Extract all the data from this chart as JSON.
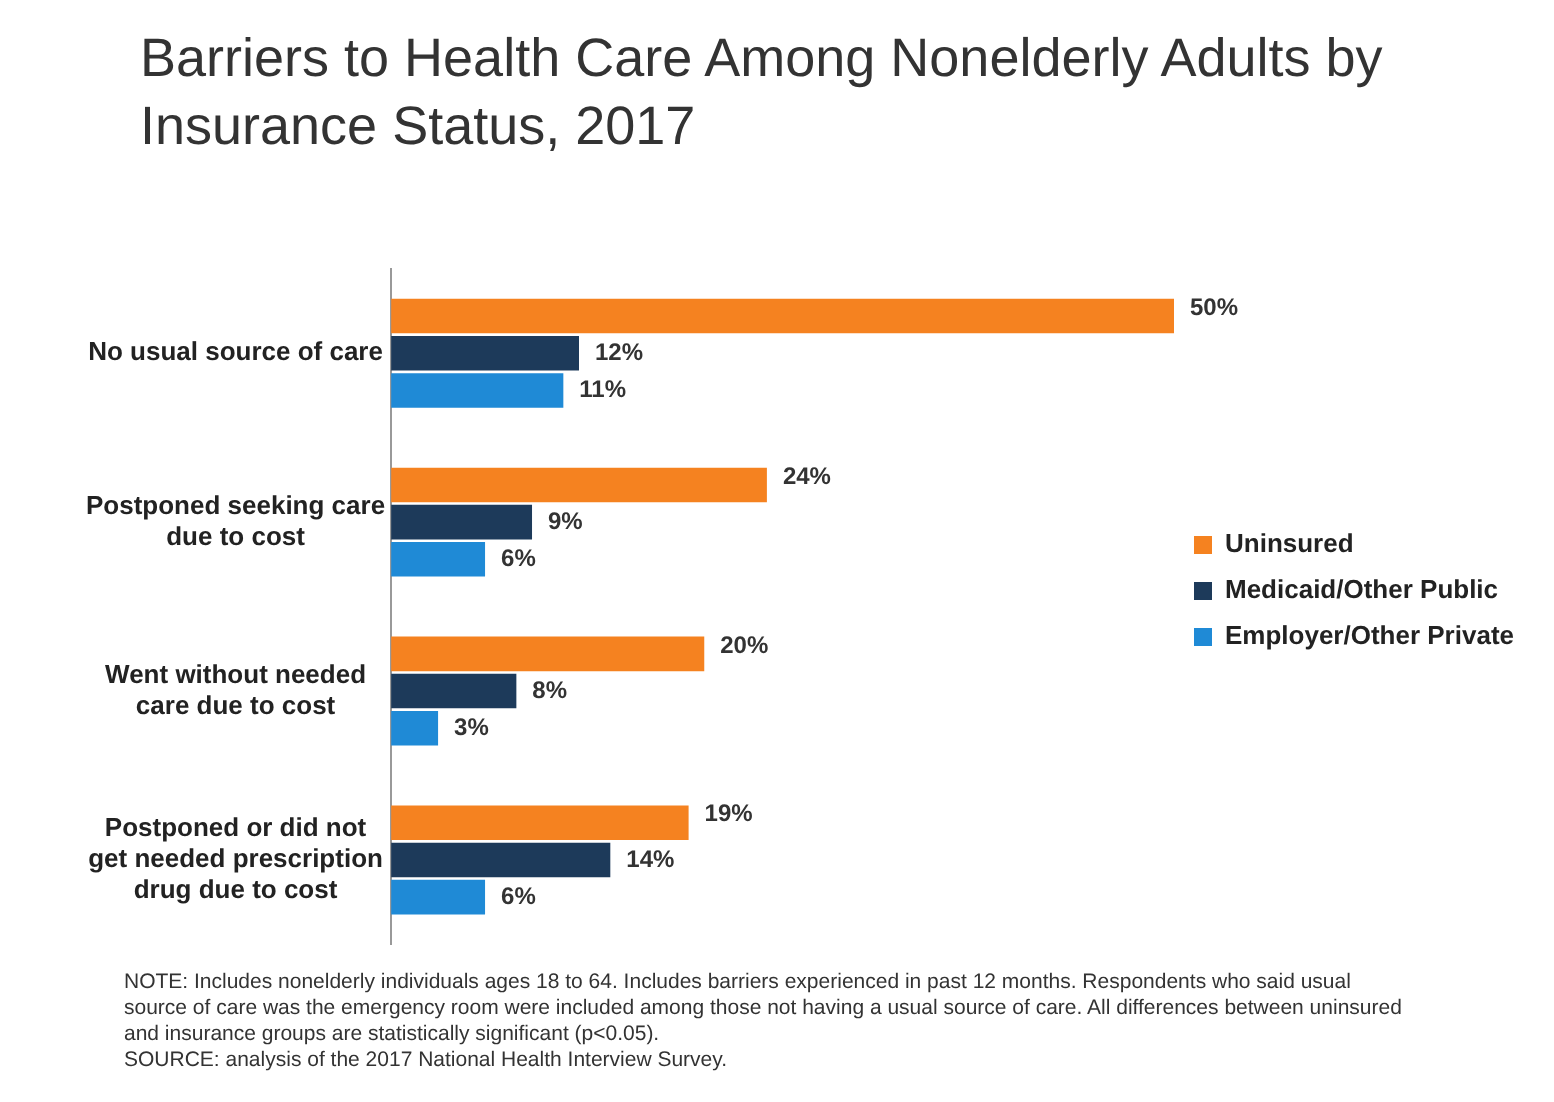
{
  "chart_data": {
    "type": "bar",
    "orientation": "horizontal",
    "title": "Barriers to Health Care Among Nonelderly Adults by Insurance Status, 2017",
    "categories": [
      "No usual source of care",
      "Postponed seeking care due to cost",
      "Went without needed care due to cost",
      "Postponed or did not get needed prescription drug due to cost"
    ],
    "series": [
      {
        "name": "Uninsured",
        "color": "#f58220",
        "values": [
          50,
          24,
          20,
          19
        ],
        "value_labels": [
          "50%",
          "24%",
          "20%",
          "19%"
        ]
      },
      {
        "name": "Medicaid/Other Public",
        "color": "#1d3a5a",
        "values": [
          12,
          9,
          8,
          14
        ],
        "value_labels": [
          "12%",
          "9%",
          "8%",
          "14%"
        ]
      },
      {
        "name": "Employer/Other Private",
        "color": "#1f8ad6",
        "values": [
          11,
          6,
          3,
          6
        ],
        "value_labels": [
          "11%",
          "6%",
          "3%",
          "6%"
        ]
      }
    ],
    "legend": "right",
    "annotations": [
      "NOTE: Includes nonelderly individuals ages 18 to 64. Includes barriers experienced in past 12 months. Respondents who said usual source of care was the emergency room were included among those not having a usual source of care. All differences between uninsured and insurance groups are statistically significant (p<0.05).",
      "SOURCE: analysis of the 2017 National Health Interview Survey."
    ]
  }
}
